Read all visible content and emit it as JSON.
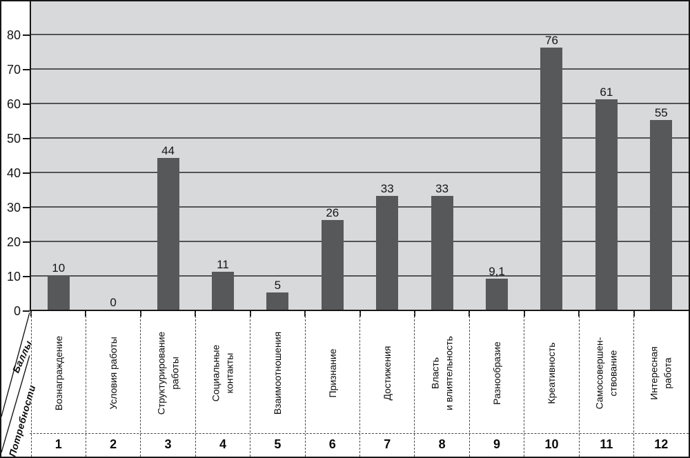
{
  "chart_data": {
    "type": "bar",
    "title": "",
    "y_axis_title": "Баллы",
    "x_axis_title": "Потребности",
    "ylim": [
      0,
      90
    ],
    "ytick_step": 10,
    "yticks": [
      "0",
      "10",
      "20",
      "30",
      "40",
      "50",
      "60",
      "70",
      "80"
    ],
    "grid": "horizontal-only",
    "legend": "none",
    "colors": {
      "plot_background": "#d8d9da",
      "bar_fill": "#57585a",
      "gridline": "#515356",
      "axis_border": "#161616",
      "dashed_divider": "#464646"
    },
    "categories": [
      {
        "num": "1",
        "label": "Вознаграждение",
        "value": 10,
        "value_label": "10"
      },
      {
        "num": "2",
        "label": "Условия работы",
        "value": 0,
        "value_label": "0"
      },
      {
        "num": "3",
        "label": "Структурирование\nработы",
        "value": 44,
        "value_label": "44"
      },
      {
        "num": "4",
        "label": "Социальные\nконтакты",
        "value": 11,
        "value_label": "11"
      },
      {
        "num": "5",
        "label": "Взаимоотношения",
        "value": 5,
        "value_label": "5"
      },
      {
        "num": "6",
        "label": "Признание",
        "value": 26,
        "value_label": "26"
      },
      {
        "num": "7",
        "label": "Достижения",
        "value": 33,
        "value_label": "33"
      },
      {
        "num": "8",
        "label": "Власть\nи влиятельность",
        "value": 33,
        "value_label": "33"
      },
      {
        "num": "9",
        "label": "Разнообразие",
        "value": 9.1,
        "value_label": "9,1"
      },
      {
        "num": "10",
        "label": "Креативность",
        "value": 76,
        "value_label": "76"
      },
      {
        "num": "11",
        "label": "Самосовершен-\nствование",
        "value": 61,
        "value_label": "61"
      },
      {
        "num": "12",
        "label": "Интересная\nработа",
        "value": 55,
        "value_label": "55"
      }
    ]
  }
}
